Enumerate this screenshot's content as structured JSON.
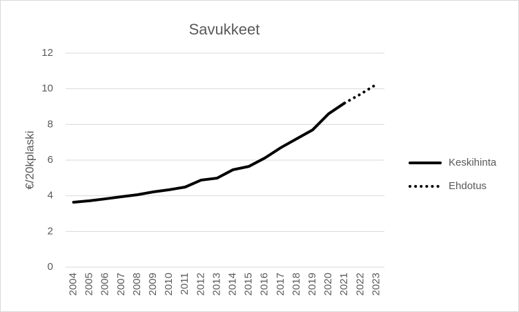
{
  "chart_data": {
    "type": "line",
    "title": "Savukkeet",
    "y_label": "€/20kplaski",
    "categories": [
      "2004",
      "2005",
      "2006",
      "2007",
      "2008",
      "2009",
      "2010",
      "2011",
      "2012",
      "2013",
      "2014",
      "2015",
      "2016",
      "2017",
      "2018",
      "2019",
      "2020",
      "2021",
      "2022",
      "2023"
    ],
    "series": [
      {
        "name": "Keskihinta",
        "color": "#000000",
        "style": "solid",
        "values": [
          3.64,
          3.72,
          3.83,
          3.95,
          4.06,
          4.22,
          4.34,
          4.49,
          4.88,
          4.99,
          5.46,
          5.65,
          6.12,
          6.7,
          7.2,
          7.7,
          8.6,
          9.2,
          null,
          null
        ]
      },
      {
        "name": "Ehdotus",
        "color": "#000000",
        "style": "dotted",
        "values": [
          null,
          null,
          null,
          null,
          null,
          null,
          null,
          null,
          null,
          null,
          null,
          null,
          null,
          null,
          null,
          null,
          null,
          9.2,
          9.7,
          10.25
        ]
      }
    ],
    "ylim": [
      0,
      12
    ],
    "yticks": [
      0,
      2,
      4,
      6,
      8,
      10,
      12
    ],
    "grid": true,
    "legend": "right"
  }
}
